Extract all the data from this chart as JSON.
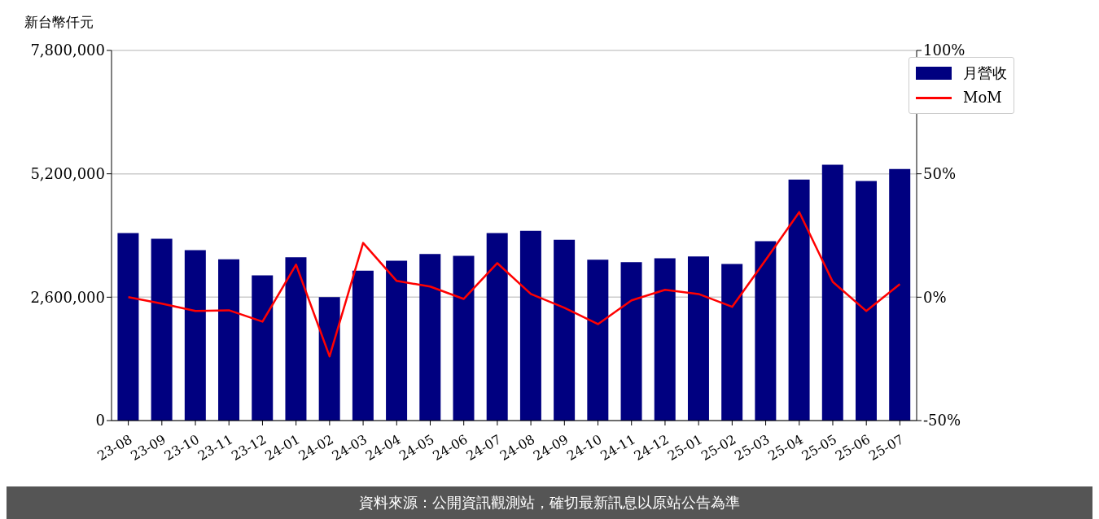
{
  "chart_data": {
    "type": "bar",
    "ylabel": "新台幣仟元",
    "categories": [
      "23-08",
      "23-09",
      "23-10",
      "23-11",
      "23-12",
      "24-01",
      "24-02",
      "24-03",
      "24-04",
      "24-05",
      "24-06",
      "24-07",
      "24-08",
      "24-09",
      "24-10",
      "24-11",
      "24-12",
      "25-01",
      "25-02",
      "25-03",
      "25-04",
      "25-05",
      "25-06",
      "25-07"
    ],
    "series": [
      {
        "name": "月營收",
        "color": "#000080",
        "values": [
          3950000,
          3830000,
          3590000,
          3400000,
          3060000,
          3440000,
          2600000,
          3160000,
          3370000,
          3510000,
          3470000,
          3950000,
          4000000,
          3810000,
          3390000,
          3340000,
          3420000,
          3460000,
          3300000,
          3780000,
          5080000,
          5390000,
          5050000,
          5300000
        ]
      },
      {
        "name": "MoM",
        "type": "line",
        "axis": "y2",
        "color": "#ff0000",
        "values": [
          0,
          -2.6,
          -5.6,
          -5.3,
          -9.9,
          13.2,
          -24,
          22,
          6.6,
          4.3,
          -0.7,
          13.8,
          1.3,
          -4.3,
          -10.9,
          -1.3,
          3.0,
          1.3,
          -3.9,
          15.1,
          34.5,
          6.2,
          -5.6,
          5.3
        ]
      }
    ],
    "ylim": [
      0,
      7800000
    ],
    "yticks": [
      {
        "value": 0,
        "label": "0"
      },
      {
        "value": 2600000,
        "label": "2,600,000"
      },
      {
        "value": 5200000,
        "label": "5,200,000"
      },
      {
        "value": 7800000,
        "label": "7,800,000"
      }
    ],
    "y2lim": [
      -50,
      100
    ],
    "y2ticks": [
      {
        "value": -50,
        "label": "-50%"
      },
      {
        "value": 0,
        "label": "0%"
      },
      {
        "value": 50,
        "label": "50%"
      },
      {
        "value": 100,
        "label": "100%"
      }
    ],
    "grid": "y",
    "legend": "top right",
    "marker": "none",
    "line_style": "solid",
    "annotations": [
      "資料來源：公開資訊觀測站，確切最新訊息以原站公告為準"
    ]
  }
}
